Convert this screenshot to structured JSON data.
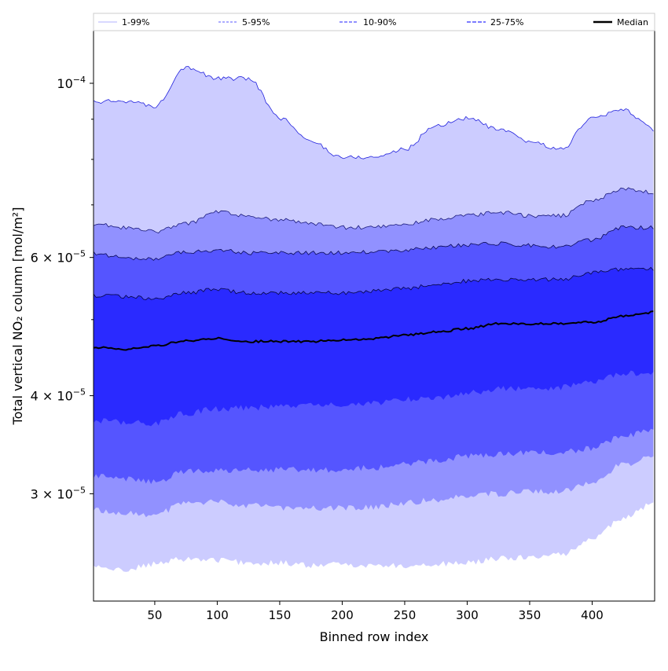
{
  "chart_data": {
    "type": "area",
    "title": "",
    "xlabel": "Binned row index",
    "ylabel": "Total vertical NO₂ column [mol/m²]",
    "y_scale": "log",
    "xlim": [
      1,
      450
    ],
    "ylim": [
      2.19e-05,
      0.0001167
    ],
    "x_ticks": [
      50,
      100,
      150,
      200,
      250,
      300,
      350,
      400
    ],
    "x_tick_labels": [
      "50",
      "100",
      "150",
      "200",
      "250",
      "300",
      "350",
      "400"
    ],
    "y_ticks": [
      0.0001,
      6e-05,
      4e-05,
      3e-05
    ],
    "y_tick_labels": [
      {
        "mant": "",
        "base": "10",
        "exp": "−4"
      },
      {
        "mant": "6 × ",
        "base": "10",
        "exp": "−5"
      },
      {
        "mant": "4 × ",
        "base": "10",
        "exp": "−5"
      },
      {
        "mant": "3 × ",
        "base": "10",
        "exp": "−5"
      }
    ],
    "y_minor_ticks": [
      5e-05,
      7e-05,
      8e-05,
      9e-05
    ],
    "legend_placement": "top (above plot)",
    "legend": [
      "1-99%",
      "5-95%",
      "10-90%",
      "25-75%",
      "Median"
    ],
    "value_unit_scale": 1e-05,
    "x": [
      1,
      25,
      50,
      75,
      100,
      125,
      150,
      175,
      200,
      225,
      250,
      275,
      300,
      325,
      350,
      375,
      400,
      425,
      450
    ],
    "bands": [
      {
        "name": "1-99%",
        "color": "#ccccff",
        "edge": "#2222dd",
        "upper": [
          9.46,
          9.5,
          9.35,
          10.49,
          10.14,
          10.14,
          9.03,
          8.43,
          8.05,
          8.05,
          8.24,
          8.83,
          9.03,
          8.73,
          8.43,
          8.24,
          9.03,
          9.25,
          8.73
        ],
        "lower": [
          2.42,
          2.4,
          2.44,
          2.48,
          2.47,
          2.45,
          2.45,
          2.43,
          2.44,
          2.43,
          2.43,
          2.44,
          2.45,
          2.48,
          2.49,
          2.51,
          2.63,
          2.79,
          2.92
        ]
      },
      {
        "name": "5-95%",
        "color": "#9191ff",
        "edge": "#1a1a7a",
        "upper": [
          6.62,
          6.55,
          6.47,
          6.62,
          6.85,
          6.78,
          6.7,
          6.62,
          6.55,
          6.55,
          6.62,
          6.7,
          6.78,
          6.85,
          6.78,
          6.78,
          7.1,
          7.34,
          7.26
        ],
        "lower": [
          2.86,
          2.84,
          2.82,
          2.92,
          2.93,
          2.9,
          2.88,
          2.88,
          2.88,
          2.88,
          2.92,
          2.95,
          2.99,
          3.0,
          3.02,
          3.02,
          3.09,
          3.27,
          3.35
        ]
      },
      {
        "name": "10-90%",
        "color": "#5555ff",
        "edge": "#0a0a55",
        "upper": [
          6.08,
          6.0,
          5.97,
          6.1,
          6.13,
          6.08,
          6.08,
          6.08,
          6.08,
          6.1,
          6.13,
          6.18,
          6.22,
          6.25,
          6.22,
          6.18,
          6.32,
          6.55,
          6.55
        ],
        "lower": [
          3.16,
          3.13,
          3.11,
          3.2,
          3.21,
          3.22,
          3.22,
          3.22,
          3.22,
          3.24,
          3.27,
          3.31,
          3.35,
          3.37,
          3.39,
          3.39,
          3.43,
          3.55,
          3.63
        ]
      },
      {
        "name": "25-75%",
        "color": "#2a2aff",
        "edge": "#050540",
        "upper": [
          5.37,
          5.35,
          5.31,
          5.41,
          5.46,
          5.41,
          5.41,
          5.41,
          5.41,
          5.44,
          5.48,
          5.54,
          5.6,
          5.63,
          5.63,
          5.63,
          5.73,
          5.8,
          5.8
        ],
        "lower": [
          3.72,
          3.7,
          3.69,
          3.8,
          3.85,
          3.86,
          3.88,
          3.89,
          3.89,
          3.92,
          3.96,
          3.98,
          4.03,
          4.08,
          4.08,
          4.1,
          4.17,
          4.27,
          4.27
        ]
      }
    ],
    "median": {
      "name": "Median",
      "color": "#000000",
      "values": [
        4.61,
        4.58,
        4.63,
        4.7,
        4.73,
        4.69,
        4.69,
        4.69,
        4.71,
        4.73,
        4.78,
        4.82,
        4.87,
        4.94,
        4.94,
        4.94,
        4.96,
        5.05,
        5.11
      ]
    }
  }
}
